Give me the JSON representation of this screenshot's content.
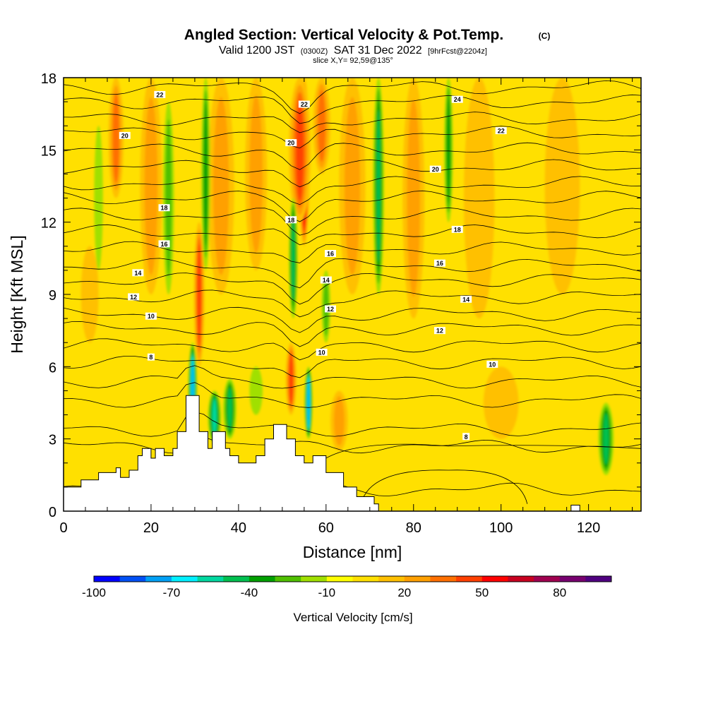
{
  "header": {
    "title": "Angled Section: Vertical Velocity & Pot.Temp.",
    "title_mark": "(C)",
    "sub_a": "Valid 1200 JST",
    "sub_b": "(0300Z)",
    "sub_c": "SAT 31 Dec 2022",
    "sub_d": "[9hrFcst@2204z]",
    "slice": "slice X,Y= 92,59@135°"
  },
  "chart_data": {
    "type": "heatmap",
    "xlabel": "Distance [nm]",
    "ylabel": "Height [Kft MSL]",
    "xlim": [
      0,
      132
    ],
    "ylim": [
      0,
      18
    ],
    "xticks": [
      "0",
      "20",
      "40",
      "60",
      "80",
      "100",
      "120"
    ],
    "xtick_values": [
      0,
      20,
      40,
      60,
      80,
      100,
      120
    ],
    "yticks": [
      "0",
      "3",
      "6",
      "9",
      "12",
      "15",
      "18"
    ],
    "ytick_values": [
      0,
      3,
      6,
      9,
      12,
      15,
      18
    ],
    "background_level_cm_s": 0,
    "terrain_kft": [
      [
        0,
        1
      ],
      [
        4,
        1
      ],
      [
        4,
        1.3
      ],
      [
        8,
        1.3
      ],
      [
        8,
        1.6
      ],
      [
        12,
        1.6
      ],
      [
        12,
        1.8
      ],
      [
        13,
        1.8
      ],
      [
        13,
        1.4
      ],
      [
        15,
        1.4
      ],
      [
        15,
        1.7
      ],
      [
        17,
        1.7
      ],
      [
        17,
        2.3
      ],
      [
        18,
        2.3
      ],
      [
        18,
        2.6
      ],
      [
        20,
        2.6
      ],
      [
        20,
        2.2
      ],
      [
        21,
        2.2
      ],
      [
        21,
        2.6
      ],
      [
        23,
        2.6
      ],
      [
        23,
        2.3
      ],
      [
        25,
        2.3
      ],
      [
        25,
        2.6
      ],
      [
        26,
        2.6
      ],
      [
        26,
        3.3
      ],
      [
        28,
        3.3
      ],
      [
        28,
        4.8
      ],
      [
        31,
        4.8
      ],
      [
        31,
        3.3
      ],
      [
        33,
        3.3
      ],
      [
        33,
        2.6
      ],
      [
        34,
        2.6
      ],
      [
        34,
        3.3
      ],
      [
        37,
        3.3
      ],
      [
        37,
        2.6
      ],
      [
        38,
        2.6
      ],
      [
        38,
        2.3
      ],
      [
        40,
        2.3
      ],
      [
        40,
        2.0
      ],
      [
        44,
        2.0
      ],
      [
        44,
        2.3
      ],
      [
        46,
        2.3
      ],
      [
        46,
        3.0
      ],
      [
        48,
        3.0
      ],
      [
        48,
        3.6
      ],
      [
        51,
        3.6
      ],
      [
        51,
        3.0
      ],
      [
        53,
        3.0
      ],
      [
        53,
        2.3
      ],
      [
        55,
        2.3
      ],
      [
        55,
        2.0
      ],
      [
        57,
        2.0
      ],
      [
        57,
        2.3
      ],
      [
        60,
        2.3
      ],
      [
        60,
        1.6
      ],
      [
        64,
        1.6
      ],
      [
        64,
        1.0
      ],
      [
        67,
        1.0
      ],
      [
        67,
        0.6
      ],
      [
        71,
        0.6
      ],
      [
        71,
        0.3
      ],
      [
        72,
        0.3
      ],
      [
        72,
        0
      ]
    ],
    "velocity_features": [
      {
        "x": 55,
        "y0": 11,
        "y1": 18,
        "w": 2.5,
        "v": 70
      },
      {
        "x": 54,
        "y0": 12,
        "y1": 18,
        "w": 5,
        "v": 45
      },
      {
        "x": 59,
        "y0": 14,
        "y1": 18,
        "w": 4,
        "v": 35
      },
      {
        "x": 52,
        "y0": 4,
        "y1": 7,
        "w": 2.5,
        "v": 45
      },
      {
        "x": 31,
        "y0": 6,
        "y1": 12,
        "w": 2.5,
        "v": 40
      },
      {
        "x": 12,
        "y0": 13,
        "y1": 18,
        "w": 3.5,
        "v": 35
      },
      {
        "x": 20,
        "y0": 9,
        "y1": 18,
        "w": 5,
        "v": 25
      },
      {
        "x": 36,
        "y0": 9,
        "y1": 18,
        "w": 6,
        "v": 20
      },
      {
        "x": 44,
        "y0": 10,
        "y1": 18,
        "w": 5,
        "v": 20
      },
      {
        "x": 66,
        "y0": 9,
        "y1": 18,
        "w": 6,
        "v": 22
      },
      {
        "x": 80,
        "y0": 8,
        "y1": 18,
        "w": 5,
        "v": 25
      },
      {
        "x": 95,
        "y0": 8,
        "y1": 18,
        "w": 7,
        "v": 15
      },
      {
        "x": 114,
        "y0": 9,
        "y1": 18,
        "w": 8,
        "v": 18
      },
      {
        "x": 6,
        "y0": 7,
        "y1": 11,
        "w": 4,
        "v": 15
      },
      {
        "x": 63,
        "y0": 2.5,
        "y1": 5,
        "w": 4,
        "v": 20
      },
      {
        "x": 100,
        "y0": 3,
        "y1": 6,
        "w": 8,
        "v": 12
      },
      {
        "x": 24,
        "y0": 9,
        "y1": 17,
        "w": 2.5,
        "v": -20
      },
      {
        "x": 32.5,
        "y0": 10,
        "y1": 18,
        "w": 2,
        "v": -35
      },
      {
        "x": 29.5,
        "y0": 3,
        "y1": 7,
        "w": 2,
        "v": -75
      },
      {
        "x": 34.5,
        "y0": 2.8,
        "y1": 5,
        "w": 3,
        "v": -55
      },
      {
        "x": 38,
        "y0": 3,
        "y1": 5.5,
        "w": 3,
        "v": -40
      },
      {
        "x": 52.5,
        "y0": 8,
        "y1": 13,
        "w": 2,
        "v": -45
      },
      {
        "x": 56,
        "y0": 3,
        "y1": 6,
        "w": 1.8,
        "v": -70
      },
      {
        "x": 60,
        "y0": 7,
        "y1": 10,
        "w": 2,
        "v": -25
      },
      {
        "x": 72,
        "y0": 9,
        "y1": 18,
        "w": 2.5,
        "v": -45
      },
      {
        "x": 88,
        "y0": 12,
        "y1": 18,
        "w": 2,
        "v": -35
      },
      {
        "x": 124,
        "y0": 1.5,
        "y1": 4.5,
        "w": 3.5,
        "v": -40
      },
      {
        "x": 44,
        "y0": 4,
        "y1": 6,
        "w": 3,
        "v": -15
      },
      {
        "x": 8,
        "y0": 10,
        "y1": 16,
        "w": 2,
        "v": -10
      }
    ],
    "contour_labels": [
      {
        "x": 22,
        "y": 17.3,
        "label": "22"
      },
      {
        "x": 55,
        "y": 16.9,
        "label": "22"
      },
      {
        "x": 90,
        "y": 17.1,
        "label": "24"
      },
      {
        "x": 14,
        "y": 15.6,
        "label": "20"
      },
      {
        "x": 52,
        "y": 15.3,
        "label": "20"
      },
      {
        "x": 100,
        "y": 15.8,
        "label": "22"
      },
      {
        "x": 85,
        "y": 14.2,
        "label": "20"
      },
      {
        "x": 23,
        "y": 12.6,
        "label": "18"
      },
      {
        "x": 52,
        "y": 12.1,
        "label": "18"
      },
      {
        "x": 90,
        "y": 11.7,
        "label": "18"
      },
      {
        "x": 23,
        "y": 11.1,
        "label": "16"
      },
      {
        "x": 61,
        "y": 10.7,
        "label": "16"
      },
      {
        "x": 86,
        "y": 10.3,
        "label": "16"
      },
      {
        "x": 17,
        "y": 9.9,
        "label": "14"
      },
      {
        "x": 60,
        "y": 9.6,
        "label": "14"
      },
      {
        "x": 92,
        "y": 8.8,
        "label": "14"
      },
      {
        "x": 16,
        "y": 8.9,
        "label": "12"
      },
      {
        "x": 61,
        "y": 8.4,
        "label": "12"
      },
      {
        "x": 86,
        "y": 7.5,
        "label": "12"
      },
      {
        "x": 20,
        "y": 8.1,
        "label": "10"
      },
      {
        "x": 59,
        "y": 6.6,
        "label": "10"
      },
      {
        "x": 98,
        "y": 6.1,
        "label": "10"
      },
      {
        "x": 20,
        "y": 6.4,
        "label": "8"
      },
      {
        "x": 92,
        "y": 3.1,
        "label": "8"
      }
    ],
    "colorbar": {
      "label": "Vertical Velocity [cm/s]",
      "levels": [
        -100,
        -90,
        -80,
        -70,
        -60,
        -50,
        -40,
        -30,
        -20,
        -10,
        0,
        10,
        20,
        30,
        40,
        50,
        60,
        70,
        80,
        90
      ],
      "colors": [
        "#0000ff",
        "#0050f5",
        "#00a0f5",
        "#00f0ff",
        "#00d8a0",
        "#00c050",
        "#00a000",
        "#50c000",
        "#a0e000",
        "#ffff00",
        "#ffe000",
        "#ffc000",
        "#ffa000",
        "#ff7000",
        "#ff4000",
        "#ff0000",
        "#c80020",
        "#a00050",
        "#780070",
        "#500080"
      ],
      "tick_labels": [
        "-100",
        "-70",
        "-40",
        "-10",
        "20",
        "50",
        "80"
      ],
      "tick_values": [
        -100,
        -70,
        -40,
        -10,
        20,
        50,
        80
      ]
    },
    "grid": false,
    "legend": "bottom colorbar"
  }
}
